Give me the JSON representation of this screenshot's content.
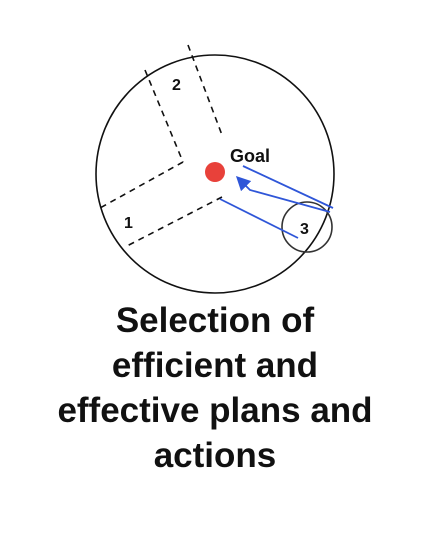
{
  "diagram": {
    "goal_label": "Goal",
    "region_labels": [
      "1",
      "2",
      "3"
    ],
    "colors": {
      "outline": "#111111",
      "goal_dot": "#e8413a",
      "arrow": "#2f56d8"
    }
  },
  "caption": {
    "lines": [
      "Selection of",
      "efficient and",
      "effective plans and",
      "actions"
    ]
  }
}
